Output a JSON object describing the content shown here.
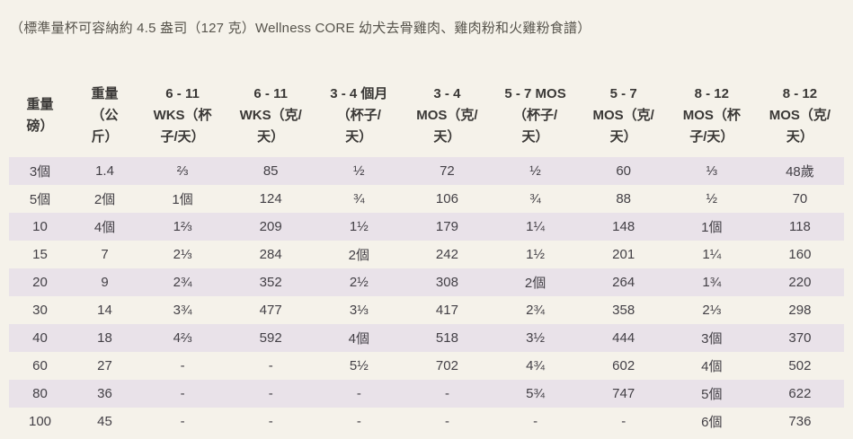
{
  "page": {
    "background_color": "#f5f2ea",
    "stripe_color": "#e9e2e9",
    "title": "（標準量杯可容納約 4.5 盎司（127 克）Wellness CORE 幼犬去骨雞肉、雞肉粉和火雞粉食譜）"
  },
  "chart_data": {
    "type": "table",
    "title": "（標準量杯可容納約 4.5 盎司（127 克）Wellness CORE 幼犬去骨雞肉、雞肉粉和火雞粉食譜）",
    "columns": [
      "重量 磅）",
      "重量（公斤）",
      "6 - 11 WKS（杯子/天）",
      "6 - 11 WKS（克/天）",
      "3 - 4 個月（杯子/天）",
      "3 - 4 MOS（克/天）",
      "5 - 7 MOS（杯子/天）",
      "5 - 7 MOS（克/天）",
      "8 - 12 MOS（杯子/天）",
      "8 - 12 MOS（克/天）"
    ],
    "rows": [
      [
        "3個",
        "1.4",
        "⅔",
        "85",
        "½",
        "72",
        "½",
        "60",
        "⅓",
        "48歲"
      ],
      [
        "5個",
        "2個",
        "1個",
        "124",
        "¾",
        "106",
        "¾",
        "88",
        "½",
        "70"
      ],
      [
        "10",
        "4個",
        "1⅔",
        "209",
        "1½",
        "179",
        "1¼",
        "148",
        "1個",
        "118"
      ],
      [
        "15",
        "7",
        "2⅓",
        "284",
        "2個",
        "242",
        "1½",
        "201",
        "1¼",
        "160"
      ],
      [
        "20",
        "9",
        "2¾",
        "352",
        "2½",
        "308",
        "2個",
        "264",
        "1¾",
        "220"
      ],
      [
        "30",
        "14",
        "3¾",
        "477",
        "3⅓",
        "417",
        "2¾",
        "358",
        "2⅓",
        "298"
      ],
      [
        "40",
        "18",
        "4⅔",
        "592",
        "4個",
        "518",
        "3½",
        "444",
        "3個",
        "370"
      ],
      [
        "60",
        "27",
        "-",
        "-",
        "5½",
        "702",
        "4¾",
        "602",
        "4個",
        "502"
      ],
      [
        "80",
        "36",
        "-",
        "-",
        "-",
        "-",
        "5¾",
        "747",
        "5個",
        "622"
      ],
      [
        "100",
        "45",
        "-",
        "-",
        "-",
        "-",
        "-",
        "-",
        "6個",
        "736"
      ]
    ]
  },
  "table": {
    "headers_display": [
      "重量\n磅）",
      "重量\n（公\n斤）",
      "6 - 11\nWKS（杯\n子/天）",
      "6 - 11\nWKS（克/\n天）",
      "3 - 4 個月\n（杯子/\n天）",
      "3 - 4\nMOS（克/\n天）",
      "5 - 7 MOS\n（杯子/\n天）",
      "5 - 7\nMOS（克/\n天）",
      "8 - 12\nMOS（杯\n子/天）",
      "8 - 12\nMOS（克/\n天）"
    ]
  }
}
